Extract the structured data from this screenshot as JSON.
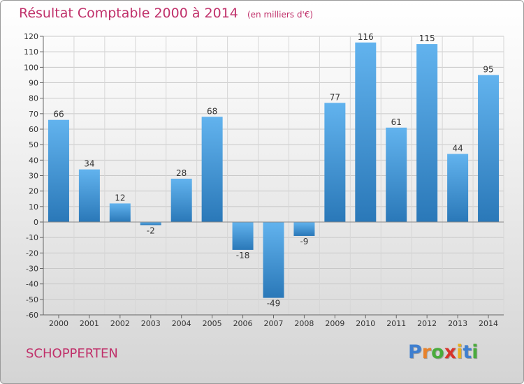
{
  "chart_data": {
    "type": "bar",
    "title": "Résultat Comptable 2000 à 2014",
    "subtitle": "(en milliers d'€)",
    "categories": [
      "2000",
      "2001",
      "2002",
      "2003",
      "2004",
      "2005",
      "2006",
      "2007",
      "2008",
      "2009",
      "2010",
      "2011",
      "2012",
      "2013",
      "2014"
    ],
    "values": [
      66,
      34,
      12,
      -2,
      28,
      68,
      -18,
      -49,
      -9,
      77,
      116,
      61,
      115,
      44,
      95
    ],
    "ylim": [
      -60,
      120
    ],
    "yticks": [
      -60,
      -50,
      -40,
      -30,
      -20,
      -10,
      0,
      10,
      20,
      30,
      40,
      50,
      60,
      70,
      80,
      90,
      100,
      110,
      120
    ],
    "grid": true,
    "legend": "none",
    "colors": {
      "bar_top": "#62b3ee",
      "bar_bottom": "#2a78b8",
      "text": "#333333"
    }
  },
  "footer": {
    "commune": "SCHOPPERTEN",
    "logo": [
      {
        "ch": "P",
        "color": "#3f7fcf"
      },
      {
        "ch": "r",
        "color": "#e8822a"
      },
      {
        "ch": "o",
        "color": "#4aab3c"
      },
      {
        "ch": "x",
        "color": "#d8342c"
      },
      {
        "ch": "i",
        "color": "#e8b020"
      },
      {
        "ch": "t",
        "color": "#3f7fcf"
      },
      {
        "ch": "i",
        "color": "#4aab3c"
      }
    ]
  }
}
